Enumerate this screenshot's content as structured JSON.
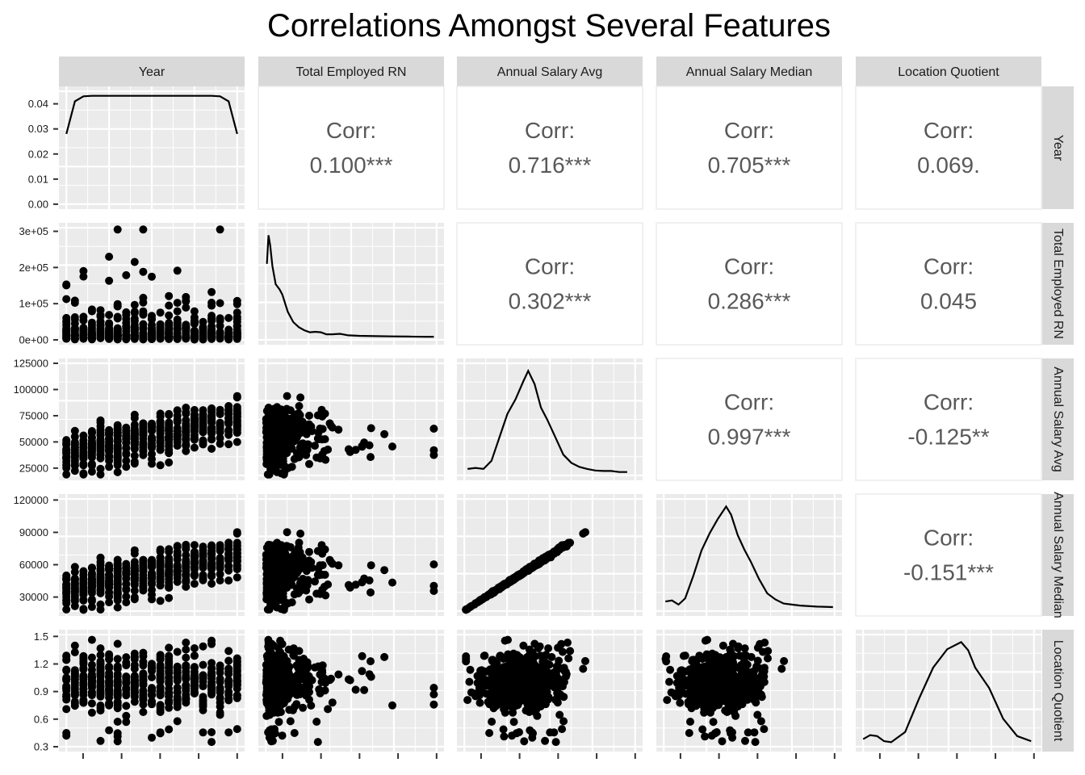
{
  "chart_data": {
    "type": "scatter-matrix",
    "title": "Correlations Amongst Several Features",
    "variables": [
      "Year",
      "Total Employed RN",
      "Annual Salary Avg",
      "Annual Salary Median",
      "Location Quotient"
    ],
    "grid": true,
    "y_axis_ticks": {
      "Year_density": [
        "0.00",
        "0.01",
        "0.02",
        "0.03",
        "0.04"
      ],
      "Total Employed RN": [
        "0e+00",
        "1e+05",
        "2e+05",
        "3e+05"
      ],
      "Annual Salary Avg": [
        "25000",
        "50000",
        "75000",
        "100000",
        "125000"
      ],
      "Annual Salary Median": [
        "30000",
        "60000",
        "90000",
        "120000"
      ],
      "Location Quotient": [
        "0.3",
        "0.6",
        "0.9",
        "1.2",
        "1.5"
      ]
    },
    "y_tick_values": {
      "Year_density": [
        0,
        0.01,
        0.02,
        0.03,
        0.04
      ],
      "Total Employed RN": [
        0,
        100000,
        200000,
        300000
      ],
      "Annual Salary Avg": [
        25000,
        50000,
        75000,
        100000,
        125000
      ],
      "Annual Salary Median": [
        30000,
        60000,
        90000,
        120000
      ],
      "Location Quotient": [
        0.3,
        0.6,
        0.9,
        1.2,
        1.5
      ]
    },
    "ranges": {
      "Year": [
        2000,
        2020
      ],
      "Year_density": [
        0,
        0.045
      ],
      "Total Employed RN": [
        0,
        310000
      ],
      "Annual Salary Avg": [
        18000,
        125000
      ],
      "Annual Salary Median": [
        17000,
        121000
      ],
      "Location Quotient": [
        0.3,
        1.52
      ]
    },
    "correlations": [
      {
        "row": "Year",
        "col": "Total Employed RN",
        "label": "Corr:",
        "value": "0.100***"
      },
      {
        "row": "Year",
        "col": "Annual Salary Avg",
        "label": "Corr:",
        "value": "0.716***"
      },
      {
        "row": "Year",
        "col": "Annual Salary Median",
        "label": "Corr:",
        "value": "0.705***"
      },
      {
        "row": "Year",
        "col": "Location Quotient",
        "label": "Corr:",
        "value": "0.069."
      },
      {
        "row": "Total Employed RN",
        "col": "Annual Salary Avg",
        "label": "Corr:",
        "value": "0.302***"
      },
      {
        "row": "Total Employed RN",
        "col": "Annual Salary Median",
        "label": "Corr:",
        "value": "0.286***"
      },
      {
        "row": "Total Employed RN",
        "col": "Location Quotient",
        "label": "Corr:",
        "value": "0.045"
      },
      {
        "row": "Annual Salary Avg",
        "col": "Annual Salary Median",
        "label": "Corr:",
        "value": "0.997***"
      },
      {
        "row": "Annual Salary Avg",
        "col": "Location Quotient",
        "label": "Corr:",
        "value": "-0.125**"
      },
      {
        "row": "Annual Salary Median",
        "col": "Location Quotient",
        "label": "Corr:",
        "value": "-0.151***"
      }
    ],
    "densities": {
      "Year": {
        "x": [
          2000,
          2001,
          2002,
          2003,
          2010,
          2017,
          2018,
          2019,
          2020
        ],
        "y": [
          0.028,
          0.041,
          0.043,
          0.0432,
          0.0432,
          0.0432,
          0.043,
          0.041,
          0.028
        ]
      },
      "Total Employed RN": {
        "x": [
          2000,
          5000,
          8000,
          12000,
          18000,
          25000,
          30000,
          40000,
          50000,
          60000,
          70000,
          80000,
          90000,
          100000,
          110000,
          120000,
          135000,
          150000,
          170000,
          200000,
          230000,
          260000,
          290000,
          305000
        ],
        "y": [
          0.72,
          1.0,
          0.9,
          0.7,
          0.52,
          0.47,
          0.42,
          0.25,
          0.15,
          0.1,
          0.07,
          0.05,
          0.055,
          0.05,
          0.03,
          0.03,
          0.035,
          0.02,
          0.015,
          0.012,
          0.01,
          0.008,
          0.006,
          0.006
        ]
      },
      "Annual Salary Avg": {
        "x": [
          20000,
          25000,
          30000,
          35000,
          40000,
          45000,
          50000,
          55000,
          58000,
          62000,
          66000,
          70000,
          75000,
          80000,
          85000,
          90000,
          95000,
          100000,
          105000,
          110000,
          115000,
          120000
        ],
        "y": [
          0.04,
          0.05,
          0.04,
          0.12,
          0.35,
          0.58,
          0.72,
          0.9,
          1.0,
          0.87,
          0.64,
          0.52,
          0.35,
          0.18,
          0.1,
          0.06,
          0.04,
          0.025,
          0.02,
          0.02,
          0.01,
          0.01
        ]
      },
      "Annual Salary Median": {
        "x": [
          18000,
          22000,
          26000,
          30000,
          35000,
          40000,
          45000,
          50000,
          55000,
          58000,
          62000,
          66000,
          70000,
          75000,
          80000,
          85000,
          90000,
          95000,
          100000,
          110000,
          120000
        ],
        "y": [
          0.07,
          0.08,
          0.04,
          0.1,
          0.32,
          0.57,
          0.74,
          0.88,
          1.0,
          0.92,
          0.72,
          0.58,
          0.46,
          0.29,
          0.15,
          0.09,
          0.05,
          0.04,
          0.03,
          0.02,
          0.015
        ]
      },
      "Location Quotient": {
        "x": [
          0.3,
          0.35,
          0.4,
          0.45,
          0.5,
          0.6,
          0.7,
          0.8,
          0.9,
          1.0,
          1.05,
          1.1,
          1.2,
          1.3,
          1.4,
          1.5
        ],
        "y": [
          0.05,
          0.09,
          0.08,
          0.03,
          0.02,
          0.12,
          0.45,
          0.75,
          0.93,
          1.0,
          0.92,
          0.75,
          0.55,
          0.25,
          0.08,
          0.03
        ]
      }
    }
  }
}
